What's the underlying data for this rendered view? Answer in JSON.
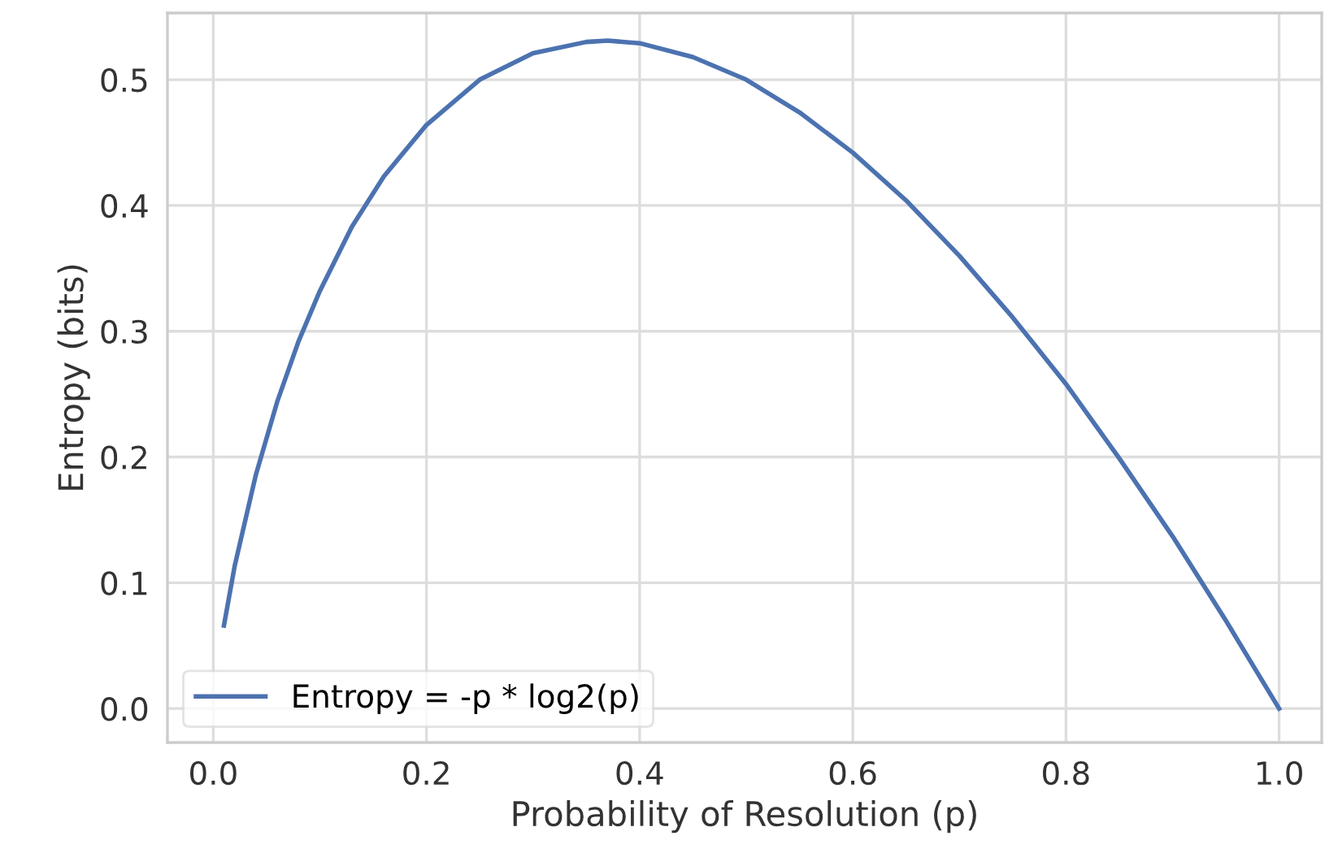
{
  "chart_data": {
    "type": "line",
    "xlabel": "Probability of Resolution (p)",
    "ylabel": "Entropy (bits)",
    "xlim": [
      -0.043,
      1.04
    ],
    "ylim": [
      -0.027,
      0.553
    ],
    "xticks": [
      {
        "value": 0,
        "label": "0.0"
      },
      0.2,
      0.4,
      0.6,
      0.8,
      {
        "value": 1,
        "label": "1.0"
      }
    ],
    "yticks": [
      {
        "value": 0,
        "label": "0.0"
      },
      0.1,
      0.2,
      0.3,
      0.4,
      0.5
    ],
    "grid": true,
    "legend": "bottom left",
    "marker": "none",
    "line_style": "solid",
    "series": [
      {
        "name": "Entropy = -p * log2(p)",
        "color": "#4c72b0",
        "x": [
          0.01,
          0.02,
          0.04,
          0.06,
          0.08,
          0.1,
          0.13,
          0.16,
          0.2,
          0.25,
          0.3,
          0.35,
          0.37,
          0.4,
          0.45,
          0.5,
          0.55,
          0.6,
          0.65,
          0.7,
          0.75,
          0.8,
          0.85,
          0.9,
          0.95,
          1.0
        ],
        "values": [
          0.066,
          0.113,
          0.186,
          0.244,
          0.292,
          0.332,
          0.383,
          0.423,
          0.464,
          0.5,
          0.521,
          0.53,
          0.531,
          0.529,
          0.518,
          0.5,
          0.474,
          0.442,
          0.404,
          0.36,
          0.311,
          0.258,
          0.199,
          0.137,
          0.07,
          0.0
        ]
      }
    ]
  }
}
